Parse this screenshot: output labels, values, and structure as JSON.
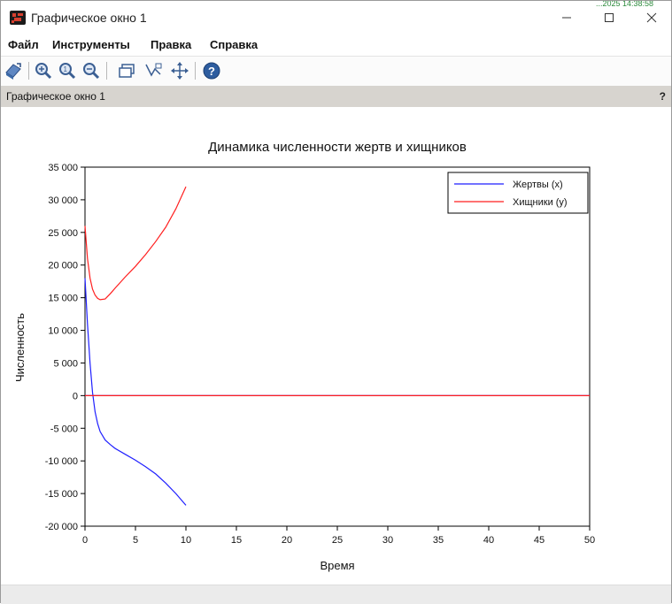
{
  "window": {
    "title": "Графическое окно 1",
    "top_strip_text": "...2025 14:38:58"
  },
  "menu": [
    "Файл",
    "Инструменты",
    "Правка",
    "Справка"
  ],
  "toolbar": {
    "icons": [
      "rotate-icon",
      "zoom-in-icon",
      "zoom-original-icon",
      "zoom-out-icon",
      "select-rect-icon",
      "datatip-icon",
      "pan-icon",
      "help-icon"
    ]
  },
  "figure_bar": {
    "label": "Графическое окно 1",
    "help": "?"
  },
  "colors": {
    "prey": "#1f1fff",
    "predator": "#ff1f1f"
  },
  "chart_data": {
    "type": "line",
    "title": "Динамика численности жертв и хищников",
    "xlabel": "Время",
    "ylabel": "Численность",
    "xlim": [
      0,
      50
    ],
    "ylim": [
      -20000,
      35000
    ],
    "xticks": [
      0,
      5,
      10,
      15,
      20,
      25,
      30,
      35,
      40,
      45,
      50
    ],
    "yticks": [
      -20000,
      -15000,
      -10000,
      -5000,
      0,
      5000,
      10000,
      15000,
      20000,
      25000,
      30000,
      35000
    ],
    "xtick_labels": [
      "0",
      "5",
      "10",
      "15",
      "20",
      "25",
      "30",
      "35",
      "40",
      "45",
      "50"
    ],
    "ytick_labels": [
      "-20 000",
      "-15 000",
      "-10 000",
      "-5 000",
      "0",
      "5 000",
      "10 000",
      "15 000",
      "20 000",
      "25 000",
      "30 000",
      "35 000"
    ],
    "grid": true,
    "legend_position": "top-right",
    "series": [
      {
        "name": "Жертвы (x)",
        "color": "#1f1fff",
        "x": [
          0,
          0.25,
          0.5,
          0.75,
          1,
          1.25,
          1.5,
          2,
          2.5,
          3,
          4,
          5,
          6,
          7,
          8,
          9,
          10
        ],
        "y": [
          18000,
          11000,
          5000,
          500,
          -2500,
          -4300,
          -5500,
          -6800,
          -7500,
          -8100,
          -9000,
          -9900,
          -10900,
          -12000,
          -13400,
          -15000,
          -16800
        ]
      },
      {
        "name": "Хищники (y)",
        "color": "#ff1f1f",
        "x": [
          0,
          0.25,
          0.5,
          0.75,
          1,
          1.25,
          1.5,
          2,
          2.5,
          3,
          4,
          5,
          6,
          7,
          8,
          9,
          10
        ],
        "y": [
          26000,
          21000,
          18000,
          16300,
          15400,
          14900,
          14700,
          14800,
          15600,
          16500,
          18200,
          19800,
          21600,
          23600,
          25800,
          28600,
          32000
        ]
      },
      {
        "name": "",
        "color": "#1f1fff",
        "x": [
          0,
          50
        ],
        "y": [
          0,
          0
        ]
      },
      {
        "name": "",
        "color": "#ff1f1f",
        "x": [
          0,
          50
        ],
        "y": [
          0,
          0
        ]
      }
    ]
  }
}
